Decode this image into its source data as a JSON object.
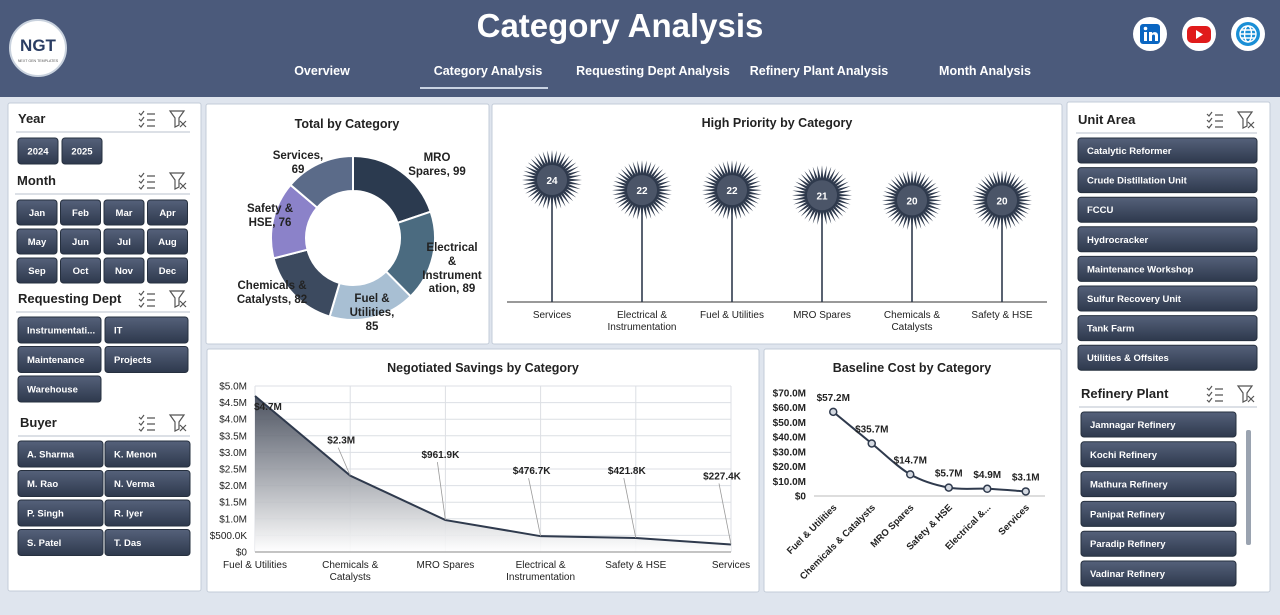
{
  "header": {
    "logo": "NGT",
    "logo_tagline": "NEXT GEN TEMPLATES",
    "title": "Category Analysis"
  },
  "nav": {
    "items": [
      "Overview",
      "Category Analysis",
      "Requesting Dept Analysis",
      "Refinery Plant Analysis",
      "Month Analysis"
    ],
    "active": 1
  },
  "slicers": [
    {
      "title": "Year",
      "items": [
        "2024",
        "2025"
      ]
    },
    {
      "title": "Month",
      "items": [
        "Jan",
        "Feb",
        "Mar",
        "Apr",
        "May",
        "Jun",
        "Jul",
        "Aug",
        "Sep",
        "Oct",
        "Nov",
        "Dec"
      ]
    },
    {
      "title": "Requesting Dept",
      "items": [
        "Instrumentati...",
        "IT",
        "Maintenance",
        "Projects",
        "Warehouse"
      ]
    },
    {
      "title": "Buyer",
      "items": [
        "A. Sharma",
        "K. Menon",
        "M. Rao",
        "N. Verma",
        "P. Singh",
        "R. Iyer",
        "S. Patel",
        "T. Das"
      ]
    },
    {
      "title": "Unit Area",
      "items": [
        "Catalytic Reformer",
        "Crude Distillation Unit",
        "FCCU",
        "Hydrocracker",
        "Maintenance Workshop",
        "Sulfur Recovery Unit",
        "Tank Farm",
        "Utilities & Offsites"
      ]
    },
    {
      "title": "Refinery Plant",
      "items": [
        "Jamnagar Refinery",
        "Kochi Refinery",
        "Mathura Refinery",
        "Panipat Refinery",
        "Paradip Refinery",
        "Vadinar Refinery"
      ]
    }
  ],
  "chart_data": [
    {
      "type": "pie",
      "donut": true,
      "title": "Total by Category",
      "categories": [
        "MRO Spares",
        "Electrical & Instrumentation",
        "Fuel & Utilities",
        "Chemicals & Catalysts",
        "Safety & HSE",
        "Services"
      ],
      "values": [
        99,
        89,
        85,
        82,
        76,
        69
      ],
      "value_labels": [
        "MRO Spares, 99",
        "Electrical & Instrumentation, 89",
        "Fuel & Utilities, 85",
        "Chemicals & Catalysts, 82",
        "Safety & HSE, 76",
        "Services, 69"
      ],
      "colors": [
        "#2b3a4f",
        "#4b6b80",
        "#a8bfd3",
        "#3c4a5f",
        "#8b82c9",
        "#5b6b89"
      ]
    },
    {
      "type": "lollipop",
      "title": "High Priority by Category",
      "categories": [
        "Services",
        "Electrical & Instrumentation",
        "Fuel & Utilities",
        "MRO Spares",
        "Chemicals & Catalysts",
        "Safety & HSE"
      ],
      "values": [
        24,
        22,
        22,
        21,
        20,
        20
      ],
      "color": "#2f3a4d"
    },
    {
      "type": "area",
      "title": "Negotiated Savings by Category",
      "categories": [
        "Fuel & Utilities",
        "Chemicals & Catalysts",
        "MRO Spares",
        "Electrical & Instrumentation",
        "Safety & HSE",
        "Services"
      ],
      "values": [
        4700000,
        2300000,
        961900,
        476700,
        421800,
        227400
      ],
      "value_labels": [
        "$4.7M",
        "$2.3M",
        "$961.9K",
        "$476.7K",
        "$421.8K",
        "$227.4K"
      ],
      "ylim": [
        0,
        5000000
      ],
      "yticks": [
        {
          "value": 0,
          "label": "$0"
        },
        {
          "value": 500000,
          "label": "$500.0K"
        },
        {
          "value": 1000000,
          "label": "$1.0M"
        },
        {
          "value": 1500000,
          "label": "$1.5M"
        },
        {
          "value": 2000000,
          "label": "$2.0M"
        },
        {
          "value": 2500000,
          "label": "$2.5M"
        },
        {
          "value": 3000000,
          "label": "$3.0M"
        },
        {
          "value": 3500000,
          "label": "$3.5M"
        },
        {
          "value": 4000000,
          "label": "$4.0M"
        },
        {
          "value": 4500000,
          "label": "$4.5M"
        },
        {
          "value": 5000000,
          "label": "$5.0M"
        }
      ],
      "grid": true,
      "color": "#2f3a4d"
    },
    {
      "type": "line",
      "title": "Baseline Cost by Category",
      "categories": [
        "Fuel & Utilities",
        "Chemicals & Catalysts",
        "MRO Spares",
        "Safety & HSE",
        "Electrical &...",
        "Services"
      ],
      "values": [
        57200000,
        35700000,
        14700000,
        5700000,
        4900000,
        3100000
      ],
      "value_labels": [
        "$57.2M",
        "$35.7M",
        "$14.7M",
        "$5.7M",
        "$4.9M",
        "$3.1M"
      ],
      "ylim": [
        0,
        70000000
      ],
      "yticks": [
        {
          "value": 0,
          "label": "$0"
        },
        {
          "value": 10000000,
          "label": "$10.0M"
        },
        {
          "value": 20000000,
          "label": "$20.0M"
        },
        {
          "value": 30000000,
          "label": "$30.0M"
        },
        {
          "value": 40000000,
          "label": "$40.0M"
        },
        {
          "value": 50000000,
          "label": "$50.0M"
        },
        {
          "value": 60000000,
          "label": "$60.0M"
        },
        {
          "value": 70000000,
          "label": "$70.0M"
        }
      ],
      "grid": false,
      "color": "#2f3a4d"
    }
  ]
}
